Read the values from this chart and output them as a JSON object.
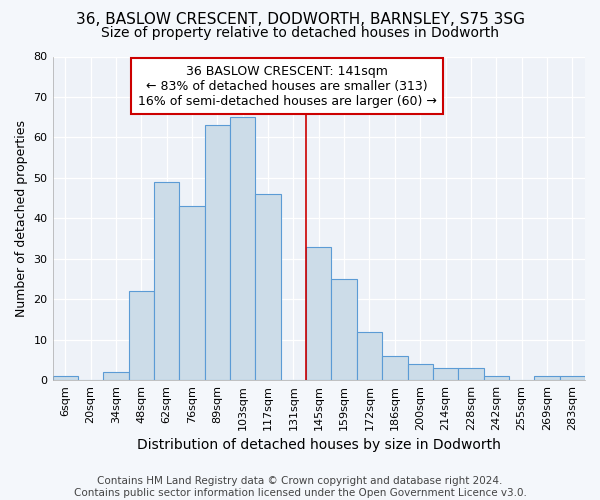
{
  "title": "36, BASLOW CRESCENT, DODWORTH, BARNSLEY, S75 3SG",
  "subtitle": "Size of property relative to detached houses in Dodworth",
  "xlabel": "Distribution of detached houses by size in Dodworth",
  "ylabel": "Number of detached properties",
  "footer1": "Contains HM Land Registry data © Crown copyright and database right 2024.",
  "footer2": "Contains public sector information licensed under the Open Government Licence v3.0.",
  "bar_labels": [
    "6sqm",
    "20sqm",
    "34sqm",
    "48sqm",
    "62sqm",
    "76sqm",
    "89sqm",
    "103sqm",
    "117sqm",
    "131sqm",
    "145sqm",
    "159sqm",
    "172sqm",
    "186sqm",
    "200sqm",
    "214sqm",
    "228sqm",
    "242sqm",
    "255sqm",
    "269sqm",
    "283sqm"
  ],
  "bar_values": [
    1,
    0,
    2,
    22,
    49,
    43,
    63,
    65,
    46,
    0,
    33,
    25,
    12,
    6,
    4,
    3,
    3,
    1,
    0,
    1,
    1
  ],
  "bar_color": "#ccdce8",
  "bar_edgecolor": "#5b9bd5",
  "vline_x_index": 9.5,
  "vline_color": "#cc0000",
  "annotation_title": "36 BASLOW CRESCENT: 141sqm",
  "annotation_line1": "← 83% of detached houses are smaller (313)",
  "annotation_line2": "16% of semi-detached houses are larger (60) →",
  "annotation_box_edgecolor": "#cc0000",
  "ylim": [
    0,
    80
  ],
  "yticks": [
    0,
    10,
    20,
    30,
    40,
    50,
    60,
    70,
    80
  ],
  "bg_color": "#f4f7fb",
  "plot_bg_color": "#eef2f8",
  "grid_color": "#ffffff",
  "title_fontsize": 11,
  "subtitle_fontsize": 10,
  "ylabel_fontsize": 9,
  "xlabel_fontsize": 10,
  "tick_fontsize": 8,
  "footer_fontsize": 7.5,
  "ann_fontsize": 9
}
